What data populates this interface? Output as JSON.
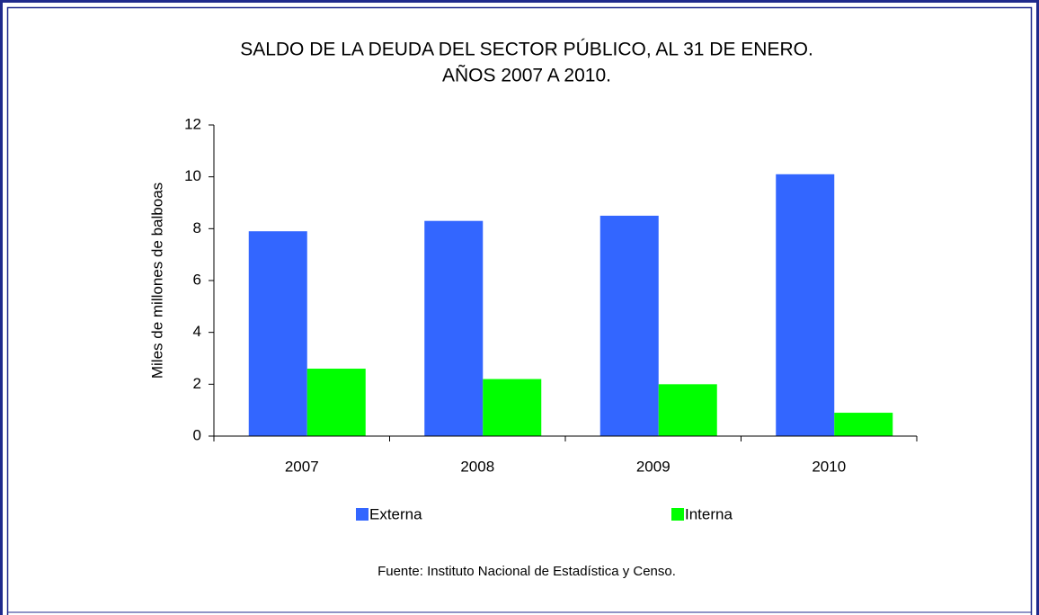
{
  "chart_data": {
    "type": "bar",
    "title": [
      "SALDO DE LA DEUDA DEL SECTOR PÚBLICO, AL 31 DE ENERO.",
      "AÑOS 2007 A 2010."
    ],
    "ylabel": "Miles de millones de balboas",
    "categories": [
      "2007",
      "2008",
      "2009",
      "2010"
    ],
    "series": [
      {
        "name": "Externa",
        "color": "#3366ff",
        "values": [
          7.9,
          8.3,
          8.5,
          10.1
        ]
      },
      {
        "name": "Interna",
        "color": "#00ff00",
        "values": [
          2.6,
          2.2,
          2.0,
          0.9
        ]
      }
    ],
    "ylim": [
      0,
      12
    ],
    "yticks": [
      0,
      2,
      4,
      6,
      8,
      10,
      12
    ],
    "grid": false,
    "legend": "bottom",
    "source": "Fuente: Instituto Nacional de Estadística y Censo."
  }
}
